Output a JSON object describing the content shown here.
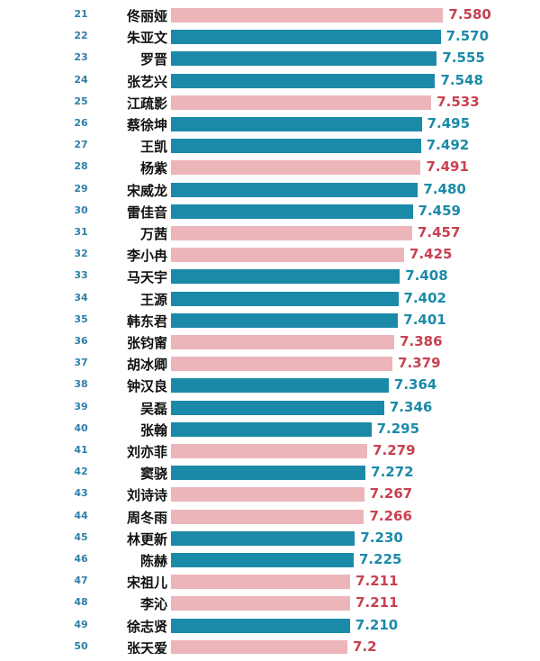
{
  "colors": {
    "teal": "#1b8aa8",
    "pink": "#ebb5ba",
    "teal_text": "#1b8aa8",
    "pink_text": "#c94150"
  },
  "chart_data": {
    "type": "bar",
    "orientation": "horizontal",
    "title": "",
    "xlabel": "",
    "ylabel": "",
    "xlim": [
      6.5,
      7.6
    ],
    "series_color_rule": "alternating teal / pink",
    "categories": [
      "佟丽娅",
      "朱亚文",
      "罗晋",
      "张艺兴",
      "江疏影",
      "蔡徐坤",
      "王凯",
      "杨紫",
      "宋威龙",
      "雷佳音",
      "万茜",
      "李小冉",
      "马天宇",
      "王源",
      "韩东君",
      "张钧甯",
      "胡冰卿",
      "钟汉良",
      "吴磊",
      "张翰",
      "刘亦菲",
      "窦骁",
      "刘诗诗",
      "周冬雨",
      "林更新",
      "陈赫",
      "宋祖儿",
      "李沁",
      "徐志贤",
      "张天爱"
    ],
    "ranks": [
      "21",
      "22",
      "23",
      "24",
      "25",
      "26",
      "27",
      "28",
      "29",
      "30",
      "31",
      "32",
      "33",
      "34",
      "35",
      "36",
      "37",
      "38",
      "39",
      "40",
      "41",
      "42",
      "43",
      "44",
      "45",
      "46",
      "47",
      "48",
      "49",
      "50"
    ],
    "values": [
      7.58,
      7.57,
      7.555,
      7.548,
      7.533,
      7.495,
      7.492,
      7.491,
      7.48,
      7.459,
      7.457,
      7.425,
      7.408,
      7.402,
      7.401,
      7.386,
      7.379,
      7.364,
      7.346,
      7.295,
      7.279,
      7.272,
      7.267,
      7.266,
      7.23,
      7.225,
      7.211,
      7.211,
      7.21,
      7.2
    ],
    "value_labels": [
      "7.580",
      "7.570",
      "7.555",
      "7.548",
      "7.533",
      "7.495",
      "7.492",
      "7.491",
      "7.480",
      "7.459",
      "7.457",
      "7.425",
      "7.408",
      "7.402",
      "7.401",
      "7.386",
      "7.379",
      "7.364",
      "7.346",
      "7.295",
      "7.279",
      "7.272",
      "7.267",
      "7.266",
      "7.230",
      "7.225",
      "7.211",
      "7.211",
      "7.210",
      "7.2"
    ],
    "bar_colors": [
      "pink",
      "teal",
      "teal",
      "teal",
      "pink",
      "teal",
      "teal",
      "pink",
      "teal",
      "teal",
      "pink",
      "pink",
      "teal",
      "teal",
      "teal",
      "pink",
      "pink",
      "teal",
      "teal",
      "teal",
      "pink",
      "teal",
      "pink",
      "pink",
      "teal",
      "teal",
      "pink",
      "pink",
      "teal",
      "pink"
    ]
  }
}
